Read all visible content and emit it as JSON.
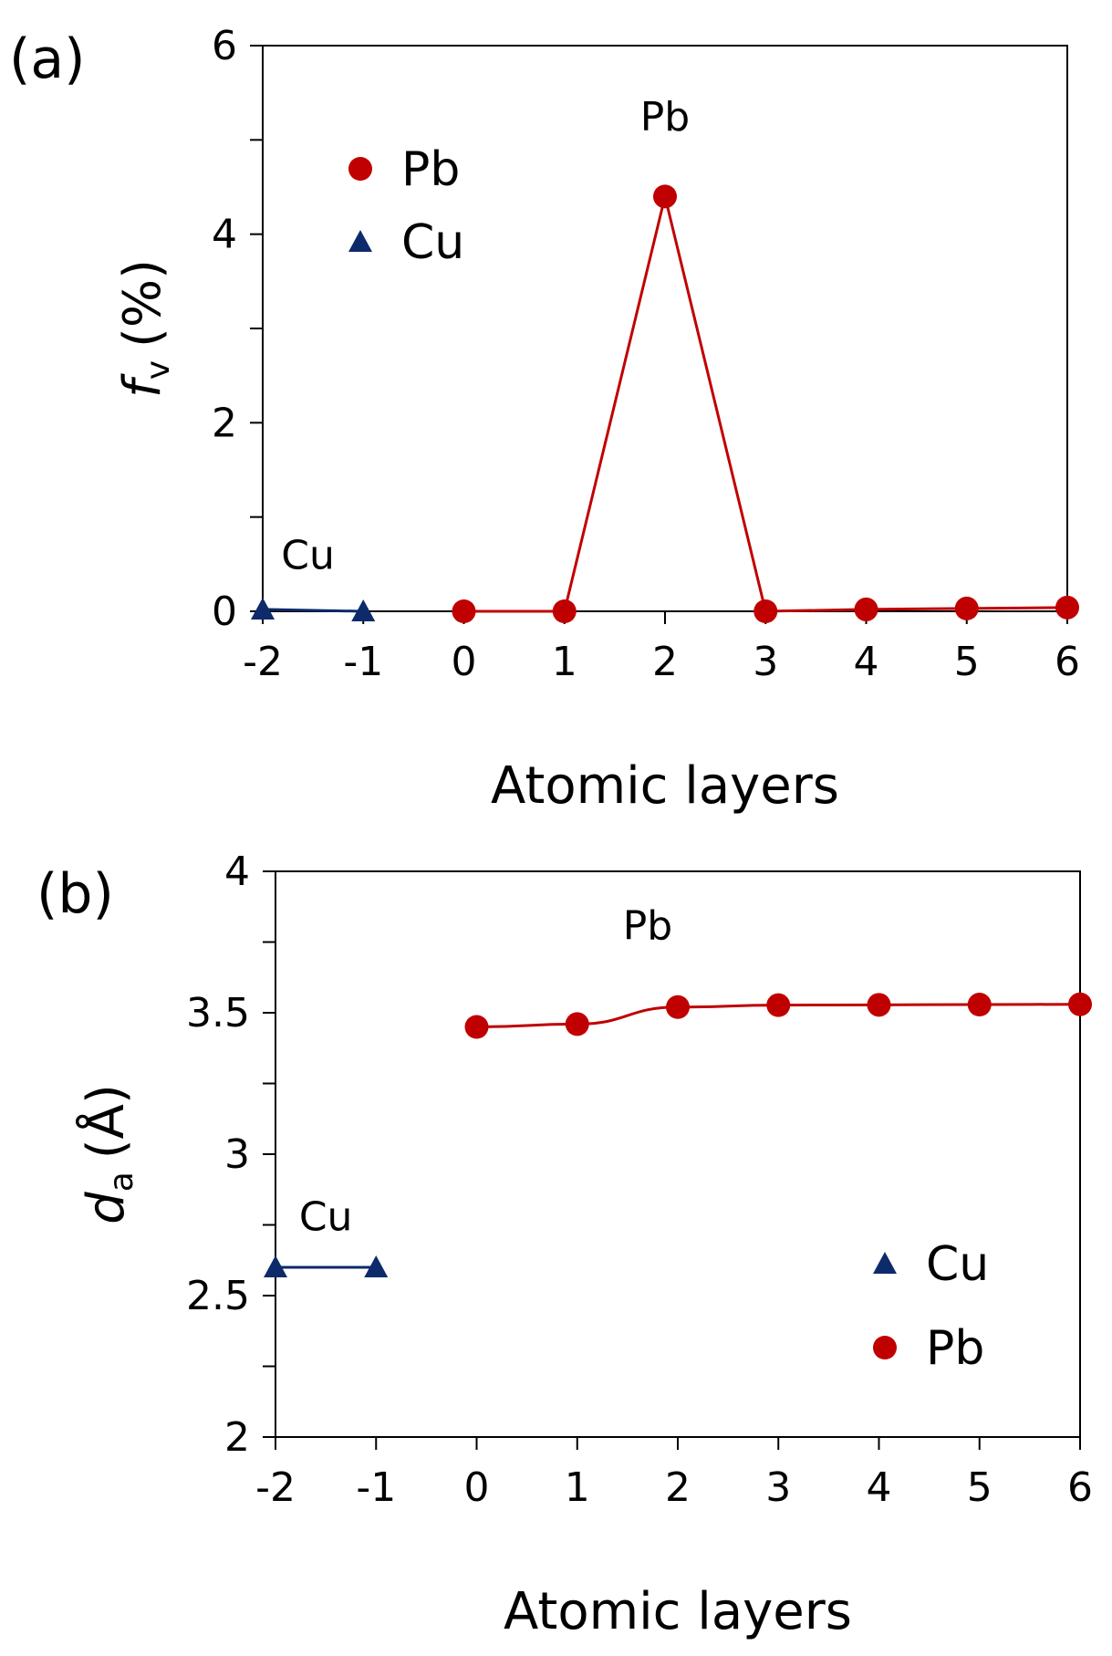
{
  "chart_data": [
    {
      "type": "line",
      "panel_label": "(a)",
      "title": "",
      "xlabel": "Atomic layers",
      "ylabel_main": "f",
      "ylabel_sub": "v",
      "ylabel_unit": "(%)",
      "xlim": [
        -2,
        6
      ],
      "ylim": [
        0,
        6
      ],
      "x_ticks": [
        -2,
        -1,
        0,
        1,
        2,
        3,
        4,
        5,
        6
      ],
      "y_ticks": [
        0,
        2,
        4,
        6
      ],
      "x_tick_labels": [
        "-2",
        "-1",
        "0",
        "1",
        "2",
        "3",
        "4",
        "5",
        "6"
      ],
      "y_tick_labels": [
        "0",
        "2",
        "4",
        "6"
      ],
      "series": [
        {
          "name": "Pb",
          "marker": "circle",
          "color": "#c00000",
          "x": [
            0,
            1,
            2,
            3,
            4,
            5,
            6
          ],
          "y": [
            0.0,
            0.0,
            4.4,
            0.0,
            0.02,
            0.03,
            0.04
          ]
        },
        {
          "name": "Cu",
          "marker": "triangle",
          "color": "#0d2a6b",
          "x": [
            -2,
            -1
          ],
          "y": [
            0.02,
            0.0
          ]
        }
      ],
      "legend": [
        {
          "label": "Pb",
          "marker": "circle",
          "color": "#c00000"
        },
        {
          "label": "Cu",
          "marker": "triangle",
          "color": "#0d2a6b"
        }
      ],
      "legend_position": "top-left",
      "annotations": [
        {
          "text": "Pb",
          "x": 2,
          "y": 5.1
        },
        {
          "text": "Cu",
          "x": -1.55,
          "y": 0.45
        }
      ],
      "grid": false
    },
    {
      "type": "line",
      "panel_label": "(b)",
      "title": "",
      "xlabel": "Atomic layers",
      "ylabel_main": "d",
      "ylabel_sub": "a",
      "ylabel_unit": "(Å)",
      "xlim": [
        -2,
        6
      ],
      "ylim": [
        2,
        4
      ],
      "x_ticks": [
        -2,
        -1,
        0,
        1,
        2,
        3,
        4,
        5,
        6
      ],
      "y_ticks": [
        2,
        2.5,
        3,
        3.5,
        4
      ],
      "x_tick_labels": [
        "-2",
        "-1",
        "0",
        "1",
        "2",
        "3",
        "4",
        "5",
        "6"
      ],
      "y_tick_labels": [
        "2",
        "2.5",
        "3",
        "3.5",
        "4"
      ],
      "series": [
        {
          "name": "Pb",
          "marker": "circle",
          "color": "#c00000",
          "x": [
            0,
            1,
            2,
            3,
            4,
            5,
            6
          ],
          "y": [
            3.45,
            3.46,
            3.52,
            3.527,
            3.528,
            3.529,
            3.53
          ]
        },
        {
          "name": "Cu",
          "marker": "triangle",
          "color": "#0d2a6b",
          "x": [
            -2,
            -1
          ],
          "y": [
            2.6,
            2.6
          ]
        }
      ],
      "legend": [
        {
          "label": "Cu",
          "marker": "triangle",
          "color": "#0d2a6b"
        },
        {
          "label": "Pb",
          "marker": "circle",
          "color": "#c00000"
        }
      ],
      "legend_position": "bottom-right",
      "annotations": [
        {
          "text": "Pb",
          "x": 1.7,
          "y": 3.76
        },
        {
          "text": "Cu",
          "x": -1.5,
          "y": 2.73
        }
      ],
      "grid": false
    }
  ]
}
